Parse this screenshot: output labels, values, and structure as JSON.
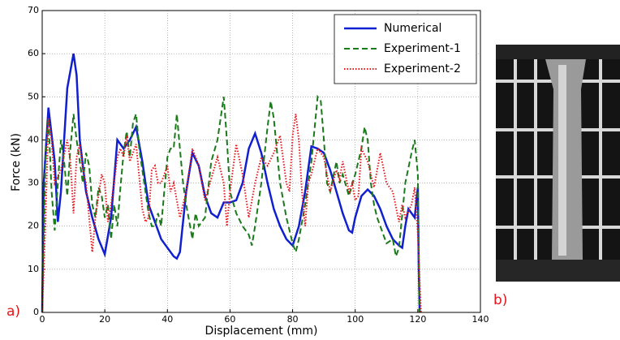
{
  "chart_data": {
    "type": "line",
    "x_label": "Displacement (mm)",
    "y_label": "Force (kN)",
    "xlim": [
      0,
      140
    ],
    "xticks": [
      0,
      20,
      40,
      60,
      80,
      100,
      120,
      140
    ],
    "ylim": [
      0,
      70
    ],
    "yticks": [
      0,
      10,
      20,
      30,
      40,
      50,
      60,
      70
    ],
    "grid": true,
    "legend": "upper right",
    "panel_labels": [
      "a)",
      "b)"
    ],
    "series": [
      {
        "name": "Numerical",
        "color": "#1020d0",
        "style": "solid",
        "x": [
          0,
          0.5,
          2,
          4,
          5,
          6,
          8,
          10,
          11,
          12,
          14,
          16,
          18,
          20,
          22,
          24,
          26,
          28,
          30,
          32,
          34,
          36,
          38,
          40,
          42,
          43,
          44,
          46,
          48,
          50,
          52,
          54,
          56,
          58,
          60,
          62,
          64,
          66,
          68,
          70,
          72,
          74,
          76,
          78,
          80,
          82,
          84,
          86,
          88,
          90,
          92,
          94,
          96,
          98,
          99,
          100,
          102,
          104,
          106,
          108,
          110,
          112,
          114,
          115,
          116,
          117,
          119,
          120,
          120.3,
          120.6
        ],
        "values": [
          0,
          30,
          47.5,
          35,
          21,
          28,
          52,
          60,
          55,
          40,
          28,
          22,
          17,
          13.5,
          22,
          40,
          38,
          40,
          43,
          35,
          25,
          21,
          17,
          15,
          13,
          12.5,
          14,
          28,
          37,
          34,
          27,
          23,
          22,
          25.5,
          25.5,
          26,
          30,
          38,
          41.5,
          37,
          30,
          24,
          20,
          17,
          15.5,
          20,
          28,
          38.5,
          38,
          37,
          33,
          28,
          23,
          19,
          18.5,
          22,
          27,
          28.5,
          27,
          24,
          20,
          17,
          15.5,
          15,
          20,
          24,
          22,
          29,
          10,
          0
        ]
      },
      {
        "name": "Experiment-1",
        "color": "#1a7a1a",
        "style": "dashed",
        "x": [
          0,
          1,
          2,
          3,
          4,
          5,
          6,
          7,
          8,
          9,
          10,
          11,
          12,
          13,
          14,
          15,
          16,
          17,
          18,
          19,
          20,
          21,
          22,
          23,
          24,
          25,
          26,
          27,
          28,
          29,
          30,
          31,
          32,
          33,
          34,
          35,
          36,
          37,
          38,
          39,
          40,
          41,
          42,
          43,
          44,
          45,
          46,
          47,
          48,
          49,
          50,
          52,
          54,
          56,
          58,
          59,
          60,
          62,
          64,
          66,
          67,
          68,
          70,
          72,
          73,
          74,
          76,
          78,
          80,
          81,
          82,
          84,
          86,
          88,
          89,
          90,
          91,
          92,
          94,
          95,
          96,
          98,
          100,
          102,
          103,
          104,
          105,
          106,
          107,
          108,
          110,
          112,
          113,
          114,
          116,
          118,
          119,
          120,
          120.5
        ],
        "values": [
          0,
          35,
          45,
          28,
          19,
          30,
          40,
          35,
          27,
          38,
          46,
          40,
          35,
          30,
          37,
          34,
          25,
          22,
          29,
          27,
          22,
          25,
          17,
          25,
          20,
          29,
          37,
          42,
          36,
          44,
          46,
          38,
          33,
          28,
          23,
          20,
          20,
          23,
          20,
          28,
          36,
          38,
          38,
          46,
          38,
          30,
          25,
          21,
          17,
          23,
          20,
          22,
          35,
          40,
          50,
          40,
          28,
          23,
          20,
          18,
          15.5,
          20,
          30,
          43,
          49,
          45,
          30,
          22,
          16,
          14,
          17,
          25,
          35,
          50,
          49,
          40,
          30,
          28,
          35,
          30,
          32,
          27,
          32,
          38,
          43,
          40,
          30,
          25,
          22,
          20,
          16,
          17,
          13,
          15,
          30,
          37,
          40,
          32,
          0
        ]
      },
      {
        "name": "Experiment-2",
        "color": "#e8141c",
        "style": "dotted",
        "x": [
          0,
          1,
          2,
          3,
          4,
          6,
          8,
          9,
          10,
          11,
          12,
          13,
          14,
          16,
          17,
          18,
          19,
          20,
          21,
          22,
          24,
          25,
          26,
          27,
          28,
          30,
          32,
          33,
          34,
          35,
          36,
          37,
          38,
          40,
          41,
          42,
          44,
          46,
          47,
          48,
          50,
          52,
          54,
          56,
          58,
          59,
          60,
          62,
          64,
          66,
          68,
          70,
          72,
          74,
          76,
          78,
          79,
          80,
          81,
          82,
          83,
          84,
          85,
          86,
          88,
          90,
          92,
          94,
          95,
          96,
          98,
          99,
          100,
          101,
          102,
          104,
          106,
          108,
          110,
          112,
          114,
          115,
          116,
          118,
          119,
          120,
          121
        ],
        "values": [
          0,
          20,
          45,
          40,
          30,
          33,
          40,
          35,
          23,
          36,
          39,
          33,
          30,
          14,
          22,
          27,
          32,
          30,
          21,
          25,
          36,
          38,
          36,
          41,
          35,
          39,
          24,
          21,
          22,
          33,
          34,
          30,
          30,
          34,
          28,
          30,
          22,
          28,
          33,
          38,
          34,
          26,
          31,
          36,
          30,
          20,
          28,
          39,
          32,
          22,
          30,
          36,
          34,
          37,
          41,
          30,
          28,
          41,
          46,
          40,
          28,
          20,
          30,
          32,
          38,
          36,
          28,
          33,
          31,
          35,
          28,
          30,
          26,
          27,
          38,
          35,
          29,
          37,
          30,
          28,
          21,
          25,
          22,
          25,
          29,
          18,
          0
        ]
      }
    ]
  }
}
